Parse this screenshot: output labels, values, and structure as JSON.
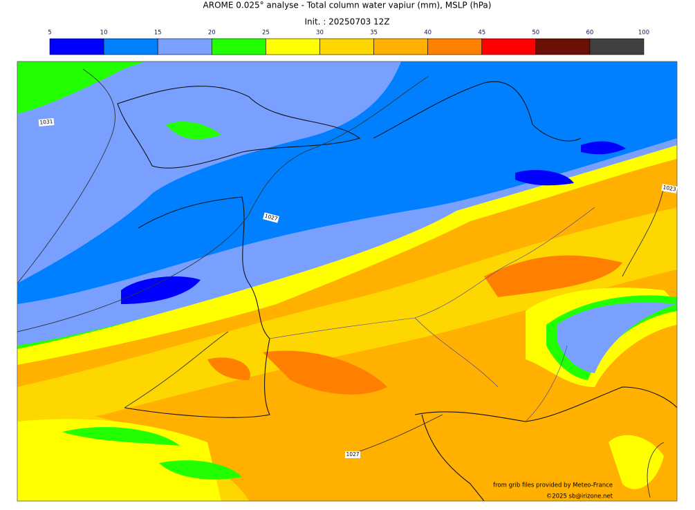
{
  "title": "AROME 0.025° analyse - Total column water vapiur (mm), MSLP (hPa)",
  "subtitle": "Init. : 20250703 12Z",
  "colorbar": {
    "ticks": [
      5,
      10,
      15,
      20,
      25,
      30,
      35,
      40,
      45,
      50,
      60,
      100
    ],
    "colors": [
      "#0000ff",
      "#0080ff",
      "#79a0ff",
      "#22ff00",
      "#ffff00",
      "#ffd700",
      "#ffb000",
      "#ff8000",
      "#ff0000",
      "#6b1005",
      "#404040"
    ]
  },
  "isobar_labels": [
    "1031",
    "1027",
    "1023",
    "1027"
  ],
  "credits": [
    "from grib files provided by Meteo-France",
    "©2025 sb@irizone.net"
  ]
}
